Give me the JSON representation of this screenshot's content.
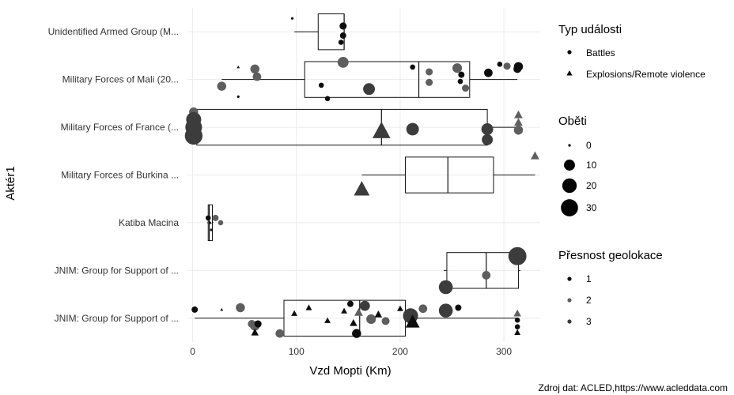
{
  "chart_data": {
    "type": "boxplot",
    "xlabel": "Vzd Mopti (Km)",
    "ylabel": "Aktér1",
    "caption": "Zdroj dat: ACLED,https://www.acleddata.com",
    "xlim": [
      -5,
      335
    ],
    "xticks": [
      0,
      100,
      200,
      300
    ],
    "grid": true,
    "categories": [
      "JNIM: Group for Support of ...",
      "JNIM: Group for Support of ...",
      "Katiba Macina",
      "Military Forces of Burkina ...",
      "Military Forces of France (...",
      "Military Forces of Mali (20...",
      "Unidentified Armed Group (M..."
    ],
    "boxes": [
      {
        "min": 2,
        "q1": 88,
        "median": 161,
        "q3": 205,
        "max": 312
      },
      {
        "min": 242,
        "q1": 245,
        "median": 283,
        "q3": 314,
        "max": 316
      },
      {
        "min": 14,
        "q1": 15,
        "median": 16,
        "q3": 19,
        "max": 20
      },
      {
        "min": 163,
        "q1": 205,
        "median": 246,
        "q3": 290,
        "max": 330
      },
      {
        "min": 1,
        "q1": 4,
        "median": 182,
        "q3": 284,
        "max": 313
      },
      {
        "min": 28,
        "q1": 108,
        "median": 218,
        "q3": 267,
        "max": 313
      },
      {
        "min": 98,
        "q1": 121,
        "median": 146,
        "q3": 146,
        "max": 146
      }
    ],
    "points": [
      {
        "cat": 7,
        "x": 96,
        "dy": 0.28,
        "type": "Battles",
        "victims": 0,
        "geo": 1
      },
      {
        "cat": 7,
        "x": 145,
        "dy": 0.12,
        "type": "Battles",
        "victims": 3,
        "geo": 1
      },
      {
        "cat": 7,
        "x": 145,
        "dy": -0.08,
        "type": "Battles",
        "victims": 2,
        "geo": 1
      },
      {
        "cat": 7,
        "x": 143,
        "dy": -0.22,
        "type": "Battles",
        "victims": 1,
        "geo": 1
      },
      {
        "cat": 6,
        "x": 145,
        "dy": 0.36,
        "type": "Battles",
        "victims": 10,
        "geo": 2
      },
      {
        "cat": 6,
        "x": 60,
        "dy": 0.22,
        "type": "Battles",
        "victims": 6,
        "geo": 2
      },
      {
        "cat": 6,
        "x": 62,
        "dy": 0.06,
        "type": "Battles",
        "victims": 5,
        "geo": 2
      },
      {
        "cat": 6,
        "x": 28,
        "dy": -0.14,
        "type": "Battles",
        "victims": 6,
        "geo": 2
      },
      {
        "cat": 6,
        "x": 44,
        "dy": 0.26,
        "type": "Explosions/Remote violence",
        "victims": 0,
        "geo": 1
      },
      {
        "cat": 6,
        "x": 44,
        "dy": -0.36,
        "type": "Battles",
        "victims": 0,
        "geo": 1
      },
      {
        "cat": 6,
        "x": 124,
        "dy": -0.12,
        "type": "Battles",
        "victims": 1,
        "geo": 1
      },
      {
        "cat": 6,
        "x": 130,
        "dy": -0.4,
        "type": "Battles",
        "victims": 1,
        "geo": 1
      },
      {
        "cat": 6,
        "x": 170,
        "dy": -0.2,
        "type": "Battles",
        "victims": 12,
        "geo": 3
      },
      {
        "cat": 6,
        "x": 212,
        "dy": 0.26,
        "type": "Battles",
        "victims": 1,
        "geo": 1
      },
      {
        "cat": 6,
        "x": 228,
        "dy": 0.16,
        "type": "Battles",
        "victims": 3,
        "geo": 2
      },
      {
        "cat": 6,
        "x": 228,
        "dy": -0.06,
        "type": "Battles",
        "victims": 3,
        "geo": 2
      },
      {
        "cat": 6,
        "x": 255,
        "dy": 0.24,
        "type": "Battles",
        "victims": 7,
        "geo": 2
      },
      {
        "cat": 6,
        "x": 259,
        "dy": 0.1,
        "type": "Battles",
        "victims": 2,
        "geo": 1
      },
      {
        "cat": 6,
        "x": 258,
        "dy": -0.04,
        "type": "Battles",
        "victims": 1,
        "geo": 1
      },
      {
        "cat": 6,
        "x": 263,
        "dy": -0.18,
        "type": "Battles",
        "victims": 3,
        "geo": 2
      },
      {
        "cat": 6,
        "x": 285,
        "dy": 0.14,
        "type": "Battles",
        "victims": 5,
        "geo": 1
      },
      {
        "cat": 6,
        "x": 296,
        "dy": 0.32,
        "type": "Battles",
        "victims": 1,
        "geo": 1
      },
      {
        "cat": 6,
        "x": 303,
        "dy": 0.28,
        "type": "Battles",
        "victims": 3,
        "geo": 2
      },
      {
        "cat": 6,
        "x": 314,
        "dy": 0.27,
        "type": "Battles",
        "victims": 6,
        "geo": 1
      },
      {
        "cat": 6,
        "x": 313,
        "dy": 0.22,
        "type": "Battles",
        "victims": 4,
        "geo": 1
      },
      {
        "cat": 5,
        "x": 1,
        "dy": 0.32,
        "type": "Battles",
        "victims": 6,
        "geo": 2
      },
      {
        "cat": 5,
        "x": 1,
        "dy": 0.16,
        "type": "Battles",
        "victims": 22,
        "geo": 3
      },
      {
        "cat": 5,
        "x": 1,
        "dy": 0.0,
        "type": "Battles",
        "victims": 28,
        "geo": 3
      },
      {
        "cat": 5,
        "x": 1,
        "dy": -0.18,
        "type": "Battles",
        "victims": 32,
        "geo": 3
      },
      {
        "cat": 5,
        "x": 182,
        "dy": -0.08,
        "type": "Explosions/Remote violence",
        "victims": 22,
        "geo": 3
      },
      {
        "cat": 5,
        "x": 212,
        "dy": -0.04,
        "type": "Battles",
        "victims": 14,
        "geo": 3
      },
      {
        "cat": 5,
        "x": 284,
        "dy": -0.04,
        "type": "Battles",
        "victims": 12,
        "geo": 3
      },
      {
        "cat": 5,
        "x": 284,
        "dy": -0.26,
        "type": "Battles",
        "victims": 10,
        "geo": 3
      },
      {
        "cat": 5,
        "x": 314,
        "dy": 0.26,
        "type": "Explosions/Remote violence",
        "victims": 3,
        "geo": 2
      },
      {
        "cat": 5,
        "x": 314,
        "dy": 0.1,
        "type": "Explosions/Remote violence",
        "victims": 3,
        "geo": 2
      },
      {
        "cat": 5,
        "x": 314,
        "dy": -0.06,
        "type": "Battles",
        "victims": 6,
        "geo": 2
      },
      {
        "cat": 4,
        "x": 163,
        "dy": -0.3,
        "type": "Explosions/Remote violence",
        "victims": 16,
        "geo": 3
      },
      {
        "cat": 4,
        "x": 330,
        "dy": 0.4,
        "type": "Explosions/Remote violence",
        "victims": 3,
        "geo": 2
      },
      {
        "cat": 3,
        "x": 15,
        "dy": 0.1,
        "type": "Battles",
        "victims": 1,
        "geo": 1
      },
      {
        "cat": 3,
        "x": 17,
        "dy": 0.0,
        "type": "Explosions/Remote violence",
        "victims": 0,
        "geo": 1
      },
      {
        "cat": 3,
        "x": 18,
        "dy": -0.15,
        "type": "Battles",
        "victims": 0,
        "geo": 1
      },
      {
        "cat": 3,
        "x": 22,
        "dy": 0.1,
        "type": "Battles",
        "victims": 2,
        "geo": 2
      },
      {
        "cat": 3,
        "x": 27,
        "dy": 0.0,
        "type": "Battles",
        "victims": 1,
        "geo": 2
      },
      {
        "cat": 2,
        "x": 313,
        "dy": 0.3,
        "type": "Battles",
        "victims": 34,
        "geo": 3
      },
      {
        "cat": 2,
        "x": 283,
        "dy": -0.1,
        "type": "Battles",
        "victims": 5,
        "geo": 2
      },
      {
        "cat": 2,
        "x": 244,
        "dy": -0.35,
        "type": "Battles",
        "victims": 18,
        "geo": 3
      },
      {
        "cat": 1,
        "x": 2,
        "dy": 0.18,
        "type": "Battles",
        "victims": 2,
        "geo": 1
      },
      {
        "cat": 1,
        "x": 28,
        "dy": 0.18,
        "type": "Explosions/Remote violence",
        "victims": 0,
        "geo": 1
      },
      {
        "cat": 1,
        "x": 46,
        "dy": 0.22,
        "type": "Battles",
        "victims": 6,
        "geo": 2
      },
      {
        "cat": 1,
        "x": 57,
        "dy": -0.12,
        "type": "Battles",
        "victims": 4,
        "geo": 2
      },
      {
        "cat": 1,
        "x": 60,
        "dy": -0.16,
        "type": "Battles",
        "victims": 7,
        "geo": 2
      },
      {
        "cat": 1,
        "x": 63,
        "dy": -0.12,
        "type": "Battles",
        "victims": 3,
        "geo": 1
      },
      {
        "cat": 1,
        "x": 60,
        "dy": -0.3,
        "type": "Explosions/Remote violence",
        "victims": 2,
        "geo": 1
      },
      {
        "cat": 1,
        "x": 84,
        "dy": -0.32,
        "type": "Battles",
        "victims": 5,
        "geo": 2
      },
      {
        "cat": 1,
        "x": 98,
        "dy": 0.1,
        "type": "Explosions/Remote violence",
        "victims": 1,
        "geo": 1
      },
      {
        "cat": 1,
        "x": 112,
        "dy": 0.22,
        "type": "Explosions/Remote violence",
        "victims": 1,
        "geo": 1
      },
      {
        "cat": 1,
        "x": 130,
        "dy": -0.05,
        "type": "Explosions/Remote violence",
        "victims": 1,
        "geo": 1
      },
      {
        "cat": 1,
        "x": 146,
        "dy": 0.15,
        "type": "Explosions/Remote violence",
        "victims": 1,
        "geo": 1
      },
      {
        "cat": 1,
        "x": 152,
        "dy": 0.3,
        "type": "Battles",
        "victims": 2,
        "geo": 1
      },
      {
        "cat": 1,
        "x": 155,
        "dy": -0.1,
        "type": "Explosions/Remote violence",
        "victims": 2,
        "geo": 1
      },
      {
        "cat": 1,
        "x": 160,
        "dy": 0.12,
        "type": "Explosions/Remote violence",
        "victims": 3,
        "geo": 2
      },
      {
        "cat": 1,
        "x": 166,
        "dy": 0.26,
        "type": "Battles",
        "victims": 8,
        "geo": 3
      },
      {
        "cat": 1,
        "x": 172,
        "dy": -0.02,
        "type": "Battles",
        "victims": 7,
        "geo": 2
      },
      {
        "cat": 1,
        "x": 158,
        "dy": -0.32,
        "type": "Battles",
        "victims": 6,
        "geo": 1
      },
      {
        "cat": 1,
        "x": 179,
        "dy": 0.08,
        "type": "Explosions/Remote violence",
        "victims": 2,
        "geo": 1
      },
      {
        "cat": 1,
        "x": 186,
        "dy": -0.06,
        "type": "Battles",
        "victims": 4,
        "geo": 2
      },
      {
        "cat": 1,
        "x": 200,
        "dy": 0.2,
        "type": "Explosions/Remote violence",
        "victims": 1,
        "geo": 1
      },
      {
        "cat": 1,
        "x": 210,
        "dy": 0.05,
        "type": "Battles",
        "victims": 22,
        "geo": 3
      },
      {
        "cat": 1,
        "x": 212,
        "dy": -0.08,
        "type": "Explosions/Remote violence",
        "victims": 12,
        "geo": 1
      },
      {
        "cat": 1,
        "x": 222,
        "dy": 0.2,
        "type": "Battles",
        "victims": 5,
        "geo": 2
      },
      {
        "cat": 1,
        "x": 244,
        "dy": 0.16,
        "type": "Battles",
        "victims": 18,
        "geo": 3
      },
      {
        "cat": 1,
        "x": 256,
        "dy": 0.22,
        "type": "Battles",
        "victims": 2,
        "geo": 1
      },
      {
        "cat": 1,
        "x": 313,
        "dy": 0.1,
        "type": "Explosions/Remote violence",
        "victims": 2,
        "geo": 2
      },
      {
        "cat": 1,
        "x": 313,
        "dy": -0.04,
        "type": "Battles",
        "victims": 1,
        "geo": 1
      },
      {
        "cat": 1,
        "x": 313,
        "dy": -0.18,
        "type": "Battles",
        "victims": 1,
        "geo": 1
      },
      {
        "cat": 1,
        "x": 313,
        "dy": -0.3,
        "type": "Explosions/Remote violence",
        "victims": 1,
        "geo": 1
      }
    ],
    "legend_position": "right",
    "legend": {
      "type": {
        "title": "Typ události",
        "items": [
          "Battles",
          "Explosions/Remote violence"
        ]
      },
      "victims": {
        "title": "Oběti",
        "items": [
          0,
          10,
          20,
          30
        ]
      },
      "geo": {
        "title": "Přesnost geolokace",
        "items": [
          1,
          2,
          3
        ]
      }
    },
    "colors": {
      "geo1": "#0d0d0d",
      "geo2": "#5e5e5e",
      "geo3": "#3c3c3c",
      "grid": "#ebebeb",
      "box": "#111111"
    }
  }
}
